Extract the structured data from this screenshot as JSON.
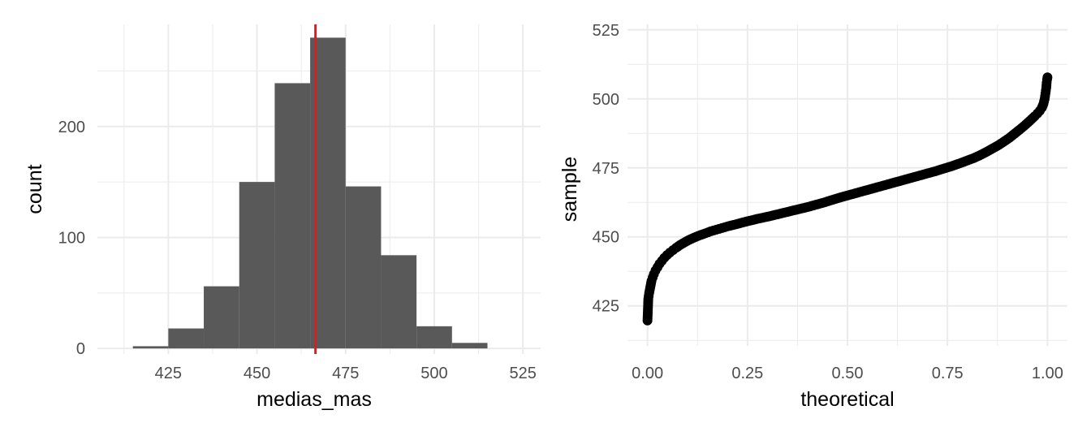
{
  "colors": {
    "bar_fill": "#595959",
    "reference_line": "#e41a1c",
    "point": "#000000",
    "grid": "#ebebeb",
    "tick_text": "#4d4d4d"
  },
  "chart_data": [
    {
      "type": "bar",
      "subtype": "histogram",
      "xlabel": "medias_mas",
      "ylabel": "count",
      "xlim": [
        405,
        530
      ],
      "ylim": [
        -5,
        292
      ],
      "x_ticks": [
        "425",
        "450",
        "475",
        "500",
        "525"
      ],
      "y_ticks": [
        "0",
        "100",
        "200"
      ],
      "grid": true,
      "bins": [
        {
          "start": 415,
          "end": 425,
          "count": 2
        },
        {
          "start": 425,
          "end": 435,
          "count": 18
        },
        {
          "start": 435,
          "end": 445,
          "count": 56
        },
        {
          "start": 445,
          "end": 455,
          "count": 150
        },
        {
          "start": 455,
          "end": 465,
          "count": 239
        },
        {
          "start": 465,
          "end": 475,
          "count": 280
        },
        {
          "start": 475,
          "end": 485,
          "count": 146
        },
        {
          "start": 485,
          "end": 495,
          "count": 84
        },
        {
          "start": 495,
          "end": 505,
          "count": 20
        },
        {
          "start": 505,
          "end": 515,
          "count": 5
        }
      ],
      "reference_line": {
        "x": 466.5,
        "label": ""
      }
    },
    {
      "type": "scatter",
      "xlabel": "theoretical",
      "ylabel": "sample",
      "xlim": [
        -0.05,
        1.05
      ],
      "ylim": [
        410.5,
        527
      ],
      "x_ticks": [
        "0.00",
        "0.25",
        "0.50",
        "0.75",
        "1.00"
      ],
      "y_ticks": [
        "425",
        "450",
        "475",
        "500",
        "525"
      ],
      "grid": true,
      "points": [
        [
          0.0,
          419.7
        ],
        [
          0.001,
          423.5
        ],
        [
          0.002,
          427.5
        ],
        [
          0.004,
          429.5
        ],
        [
          0.006,
          431.0
        ],
        [
          0.008,
          432.5
        ],
        [
          0.01,
          434.0
        ],
        [
          0.013,
          435.3
        ],
        [
          0.016,
          436.5
        ],
        [
          0.02,
          437.8
        ],
        [
          0.025,
          439.0
        ],
        [
          0.03,
          440.2
        ],
        [
          0.036,
          441.3
        ],
        [
          0.042,
          442.4
        ],
        [
          0.049,
          443.4
        ],
        [
          0.056,
          444.3
        ],
        [
          0.064,
          445.2
        ],
        [
          0.072,
          446.1
        ],
        [
          0.081,
          447.0
        ],
        [
          0.09,
          447.8
        ],
        [
          0.1,
          448.6
        ],
        [
          0.11,
          449.3
        ],
        [
          0.121,
          450.0
        ],
        [
          0.133,
          450.7
        ],
        [
          0.145,
          451.3
        ],
        [
          0.158,
          452.0
        ],
        [
          0.172,
          452.6
        ],
        [
          0.186,
          453.2
        ],
        [
          0.2,
          453.8
        ],
        [
          0.22,
          454.5
        ],
        [
          0.24,
          455.3
        ],
        [
          0.26,
          456.0
        ],
        [
          0.28,
          456.7
        ],
        [
          0.3,
          457.3
        ],
        [
          0.32,
          458.0
        ],
        [
          0.34,
          458.7
        ],
        [
          0.36,
          459.4
        ],
        [
          0.38,
          460.1
        ],
        [
          0.4,
          460.8
        ],
        [
          0.42,
          461.6
        ],
        [
          0.44,
          462.4
        ],
        [
          0.46,
          463.3
        ],
        [
          0.48,
          464.2
        ],
        [
          0.5,
          465.0
        ],
        [
          0.52,
          465.8
        ],
        [
          0.54,
          466.6
        ],
        [
          0.56,
          467.4
        ],
        [
          0.58,
          468.2
        ],
        [
          0.6,
          469.0
        ],
        [
          0.62,
          469.8
        ],
        [
          0.64,
          470.6
        ],
        [
          0.66,
          471.4
        ],
        [
          0.68,
          472.2
        ],
        [
          0.7,
          473.0
        ],
        [
          0.72,
          473.8
        ],
        [
          0.74,
          474.7
        ],
        [
          0.76,
          475.6
        ],
        [
          0.78,
          476.6
        ],
        [
          0.8,
          477.7
        ],
        [
          0.815,
          478.5
        ],
        [
          0.83,
          479.5
        ],
        [
          0.845,
          480.6
        ],
        [
          0.86,
          481.8
        ],
        [
          0.875,
          483.0
        ],
        [
          0.89,
          484.4
        ],
        [
          0.905,
          485.9
        ],
        [
          0.918,
          487.4
        ],
        [
          0.93,
          488.8
        ],
        [
          0.941,
          490.1
        ],
        [
          0.951,
          491.4
        ],
        [
          0.96,
          492.6
        ],
        [
          0.968,
          493.7
        ],
        [
          0.975,
          494.7
        ],
        [
          0.981,
          495.7
        ],
        [
          0.986,
          496.8
        ],
        [
          0.99,
          498.2
        ],
        [
          0.993,
          500.0
        ],
        [
          0.995,
          502.0
        ],
        [
          0.997,
          504.0
        ],
        [
          0.998,
          505.8
        ],
        [
          0.999,
          507.0
        ],
        [
          1.0,
          507.8
        ]
      ]
    }
  ]
}
